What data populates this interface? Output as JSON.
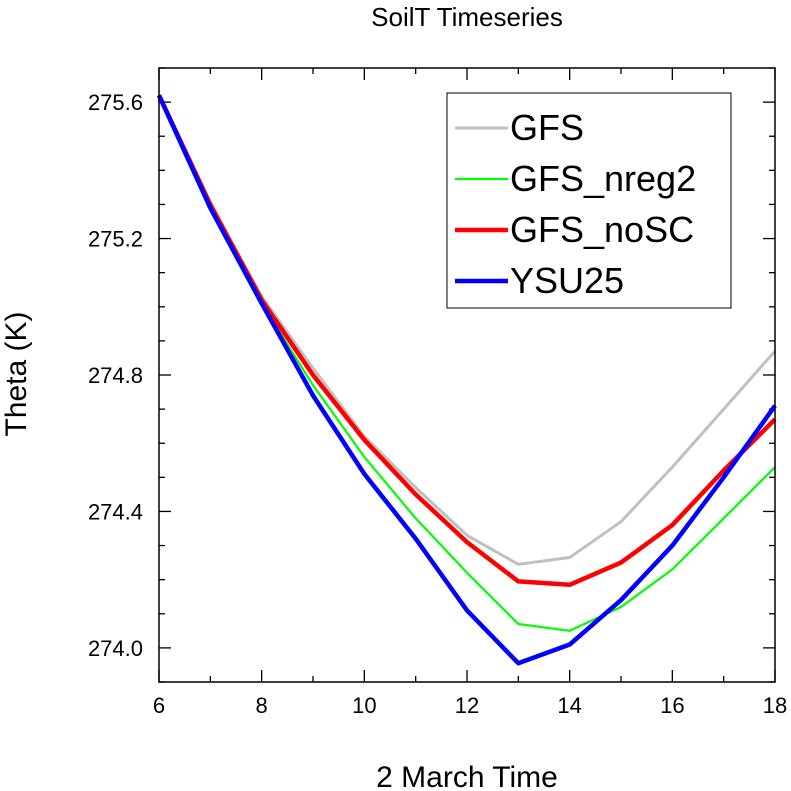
{
  "chart_data": {
    "type": "line",
    "title": "SoilT Timeseries",
    "xlabel": "2 March Time",
    "ylabel": "Theta (K)",
    "xlim": [
      6,
      18
    ],
    "ylim": [
      273.9,
      275.7
    ],
    "x_ticks": [
      "6",
      "8",
      "10",
      "12",
      "14",
      "16",
      "18"
    ],
    "y_ticks": [
      "274.0",
      "274.4",
      "274.8",
      "275.2",
      "275.6"
    ],
    "x": [
      6,
      7,
      8,
      9,
      10,
      11,
      12,
      13,
      14,
      15,
      16,
      17,
      18
    ],
    "legend_position": "top-right",
    "series": [
      {
        "name": "GFS",
        "color": "#c0c0c0",
        "values": [
          275.62,
          275.3,
          275.03,
          274.82,
          274.62,
          274.47,
          274.33,
          274.245,
          274.265,
          274.37,
          274.53,
          274.7,
          274.87
        ]
      },
      {
        "name": "GFS_nreg2",
        "color": "#00ff00",
        "values": [
          275.62,
          275.29,
          275.01,
          274.77,
          274.56,
          274.38,
          274.22,
          274.07,
          274.05,
          274.12,
          274.23,
          274.38,
          274.53
        ]
      },
      {
        "name": "GFS_noSC",
        "color": "#ff0000",
        "values": [
          275.62,
          275.3,
          275.02,
          274.8,
          274.61,
          274.45,
          274.31,
          274.195,
          274.185,
          274.25,
          274.36,
          274.52,
          274.67
        ]
      },
      {
        "name": "YSU25",
        "color": "#0000ff",
        "values": [
          275.62,
          275.29,
          275.01,
          274.74,
          274.51,
          274.32,
          274.11,
          273.955,
          274.01,
          274.14,
          274.3,
          274.5,
          274.71
        ]
      }
    ]
  }
}
